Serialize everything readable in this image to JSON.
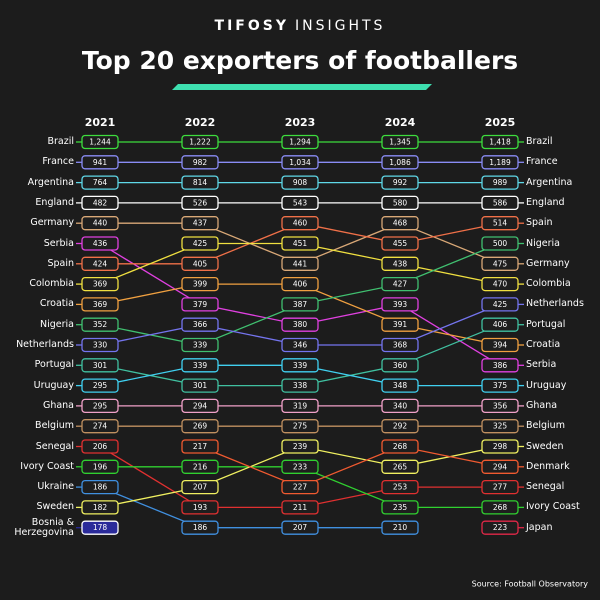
{
  "brand": "TIFOSY",
  "brand_suffix": "INSIGHTS",
  "source": "Source: Football Observatory",
  "chart_data": {
    "type": "bump",
    "title": "Top 20 exporters of footballers",
    "categories": [
      "2021",
      "2022",
      "2023",
      "2024",
      "2025"
    ],
    "series": [
      {
        "name": "Brazil",
        "color": "#3ddc3d",
        "values": [
          1244,
          1222,
          1294,
          1345,
          1418
        ],
        "value_labels": [
          "1,244",
          "1,222",
          "1,294",
          "1,345",
          "1,418"
        ],
        "rank": [
          1,
          1,
          1,
          1,
          1
        ]
      },
      {
        "name": "France",
        "color": "#8a8cf5",
        "values": [
          941,
          982,
          1034,
          1086,
          1189
        ],
        "value_labels": [
          "941",
          "982",
          "1,034",
          "1,086",
          "1,189"
        ],
        "rank": [
          2,
          2,
          2,
          2,
          2
        ]
      },
      {
        "name": "Argentina",
        "color": "#5fd8e8",
        "values": [
          764,
          814,
          908,
          992,
          989
        ],
        "rank": [
          3,
          3,
          3,
          3,
          3
        ]
      },
      {
        "name": "England",
        "color": "#ffffff",
        "values": [
          482,
          526,
          543,
          580,
          586
        ],
        "rank": [
          4,
          4,
          4,
          4,
          4
        ]
      },
      {
        "name": "Germany",
        "color": "#d9a877",
        "values": [
          440,
          437,
          441,
          468,
          475
        ],
        "rank": [
          5,
          5,
          7,
          5,
          7
        ]
      },
      {
        "name": "Serbia",
        "color": "#e040e0",
        "values": [
          436,
          379,
          380,
          393,
          386
        ],
        "rank": [
          6,
          9,
          10,
          9,
          12
        ]
      },
      {
        "name": "Spain",
        "color": "#f07048",
        "values": [
          424,
          405,
          460,
          455,
          514
        ],
        "rank": [
          7,
          7,
          5,
          6,
          5
        ]
      },
      {
        "name": "Colombia",
        "color": "#f0e040",
        "values": [
          369,
          425,
          451,
          438,
          470
        ],
        "rank": [
          8,
          6,
          6,
          7,
          8
        ]
      },
      {
        "name": "Croatia",
        "color": "#f0a040",
        "values": [
          369,
          399,
          406,
          391,
          394
        ],
        "rank": [
          9,
          8,
          8,
          10,
          11
        ]
      },
      {
        "name": "Nigeria",
        "color": "#40c070",
        "values": [
          352,
          339,
          387,
          427,
          500
        ],
        "rank": [
          10,
          11,
          9,
          8,
          6
        ]
      },
      {
        "name": "Netherlands",
        "color": "#7474ee",
        "values": [
          330,
          366,
          346,
          368,
          425
        ],
        "rank": [
          11,
          10,
          11,
          11,
          9
        ]
      },
      {
        "name": "Portugal",
        "color": "#40c0a0",
        "values": [
          301,
          301,
          338,
          360,
          406
        ],
        "rank": [
          12,
          13,
          13,
          12,
          10
        ]
      },
      {
        "name": "Uruguay",
        "color": "#40d0f0",
        "values": [
          295,
          339,
          339,
          348,
          375
        ],
        "rank": [
          13,
          12,
          12,
          13,
          13
        ]
      },
      {
        "name": "Ghana",
        "color": "#f0a0c8",
        "values": [
          295,
          294,
          319,
          340,
          356
        ],
        "rank": [
          14,
          14,
          14,
          14,
          14
        ]
      },
      {
        "name": "Belgium",
        "color": "#c09060",
        "values": [
          274,
          269,
          275,
          292,
          325
        ],
        "rank": [
          15,
          15,
          15,
          15,
          15
        ]
      },
      {
        "name": "Senegal",
        "color": "#e03030",
        "values": [
          206,
          193,
          211,
          253,
          277
        ],
        "rank": [
          16,
          19,
          19,
          18,
          18
        ]
      },
      {
        "name": "Ivory Coast",
        "color": "#30d030",
        "values": [
          196,
          216,
          233,
          235,
          268
        ],
        "rank": [
          17,
          17,
          17,
          19,
          19
        ]
      },
      {
        "name": "Ukraine",
        "color": "#4090e0",
        "values": [
          186,
          186,
          207,
          210,
          null
        ],
        "rank": [
          18,
          20,
          20,
          20,
          null
        ]
      },
      {
        "name": "Sweden",
        "color": "#f0f060",
        "values": [
          182,
          207,
          239,
          265,
          298
        ],
        "rank": [
          19,
          18,
          16,
          17,
          16
        ]
      },
      {
        "name": "Bosnia & Herzegovina",
        "color": "#2a2a9a",
        "values": [
          178,
          null,
          null,
          null,
          null
        ],
        "rank": [
          20,
          null,
          null,
          null,
          null
        ]
      },
      {
        "name": "Denmark",
        "color": "#f05a30",
        "values": [
          null,
          217,
          227,
          268,
          294
        ],
        "rank": [
          null,
          16,
          18,
          16,
          17
        ]
      },
      {
        "name": "Japan",
        "color": "#e02848",
        "values": [
          null,
          null,
          null,
          null,
          223
        ],
        "rank": [
          null,
          null,
          null,
          null,
          20
        ]
      }
    ]
  }
}
